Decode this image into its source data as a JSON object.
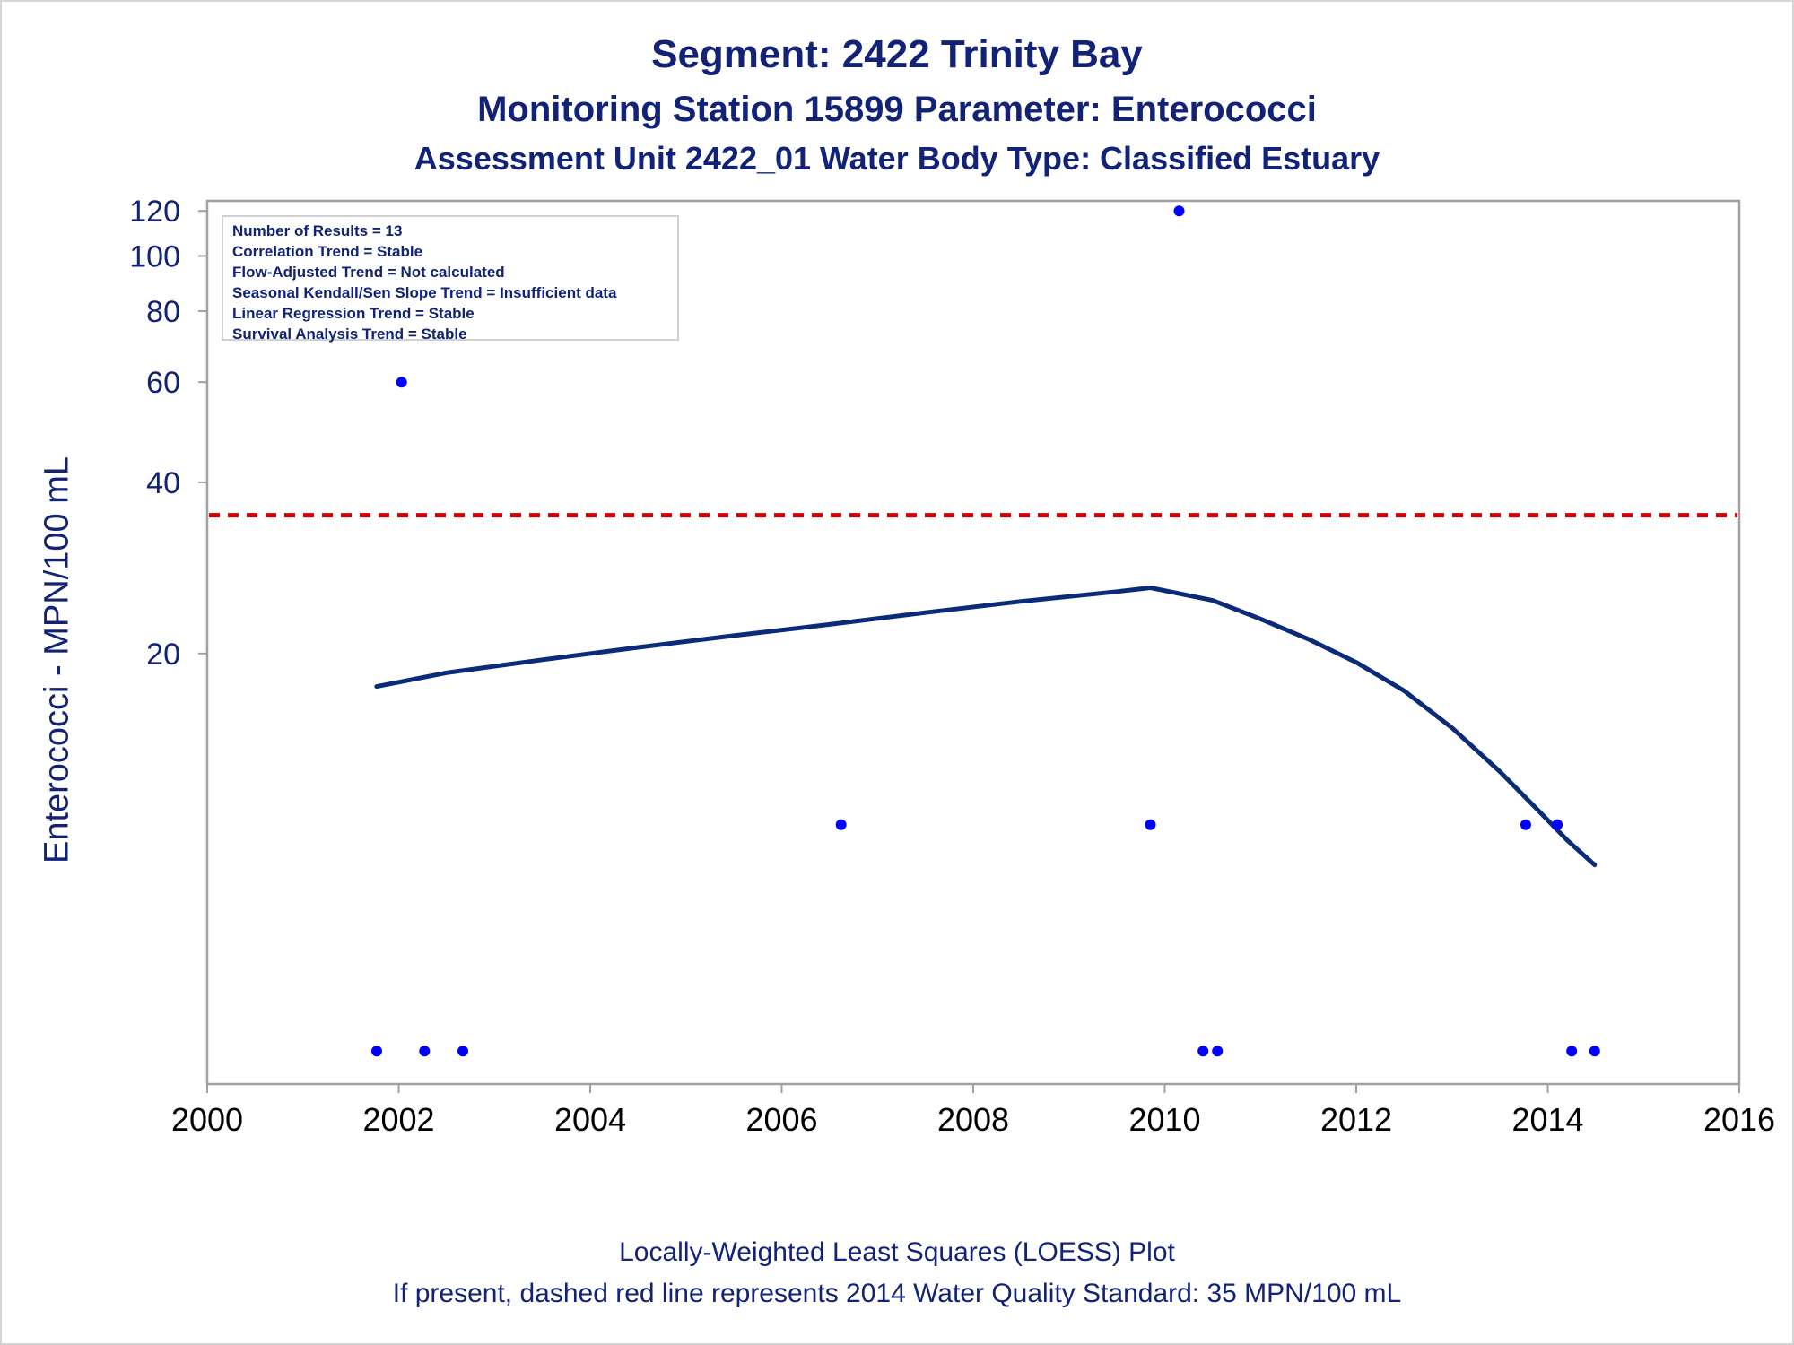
{
  "titles": {
    "line1": "Segment: 2422  Trinity Bay",
    "line2": "Monitoring Station 15899 Parameter: Enterococci",
    "line3": "Assessment Unit 2422_01   Water Body Type: Classified Estuary"
  },
  "footnotes": {
    "line1": "Locally-Weighted Least Squares (LOESS) Plot",
    "line2": "If present, dashed red line represents 2014 Water Quality Standard: 35 MPN/100 mL"
  },
  "stats": [
    "Number of Results = 13",
    "Correlation Trend = Stable",
    "Flow-Adjusted Trend = Not calculated",
    "Seasonal Kendall/Sen Slope Trend = Insufficient data",
    "Linear Regression Trend = Stable",
    "Survival Analysis Trend = Stable"
  ],
  "colors": {
    "text": "#112277",
    "points": "#0000ff",
    "loess": "#0a2a7a",
    "standard_line": "#d40000",
    "axis": "#a0a0a0"
  },
  "chart_data": {
    "type": "scatter",
    "title": "Segment: 2422  Trinity Bay",
    "xlabel": "",
    "ylabel": "Enterococci - MPN/100 mL",
    "xlim": [
      2000,
      2016
    ],
    "ylim": [
      3.5,
      125
    ],
    "y_scale": "log",
    "xticks": [
      2000,
      2002,
      2004,
      2006,
      2008,
      2010,
      2012,
      2014,
      2016
    ],
    "yticks": [
      20,
      40,
      60,
      80,
      100,
      120
    ],
    "grid": false,
    "points": [
      {
        "x": 2001.77,
        "y": 4
      },
      {
        "x": 2002.03,
        "y": 60
      },
      {
        "x": 2002.27,
        "y": 4
      },
      {
        "x": 2002.67,
        "y": 4
      },
      {
        "x": 2006.62,
        "y": 10
      },
      {
        "x": 2009.85,
        "y": 10
      },
      {
        "x": 2010.15,
        "y": 120
      },
      {
        "x": 2010.4,
        "y": 4
      },
      {
        "x": 2010.55,
        "y": 4
      },
      {
        "x": 2013.77,
        "y": 10
      },
      {
        "x": 2014.1,
        "y": 10
      },
      {
        "x": 2014.25,
        "y": 4
      },
      {
        "x": 2014.49,
        "y": 4
      }
    ],
    "loess": [
      {
        "x": 2001.77,
        "y": 17.5
      },
      {
        "x": 2002.5,
        "y": 18.5
      },
      {
        "x": 2003.5,
        "y": 19.5
      },
      {
        "x": 2004.5,
        "y": 20.5
      },
      {
        "x": 2005.5,
        "y": 21.5
      },
      {
        "x": 2006.5,
        "y": 22.5
      },
      {
        "x": 2007.5,
        "y": 23.6
      },
      {
        "x": 2008.5,
        "y": 24.7
      },
      {
        "x": 2009.5,
        "y": 25.7
      },
      {
        "x": 2009.85,
        "y": 26.1
      },
      {
        "x": 2010.5,
        "y": 24.8
      },
      {
        "x": 2011.0,
        "y": 23.0
      },
      {
        "x": 2011.5,
        "y": 21.2
      },
      {
        "x": 2012.0,
        "y": 19.3
      },
      {
        "x": 2012.5,
        "y": 17.2
      },
      {
        "x": 2013.0,
        "y": 14.8
      },
      {
        "x": 2013.5,
        "y": 12.4
      },
      {
        "x": 2013.9,
        "y": 10.6
      },
      {
        "x": 2014.2,
        "y": 9.4
      },
      {
        "x": 2014.49,
        "y": 8.5
      }
    ],
    "standard_line": {
      "y": 35,
      "style": "dashed"
    }
  }
}
